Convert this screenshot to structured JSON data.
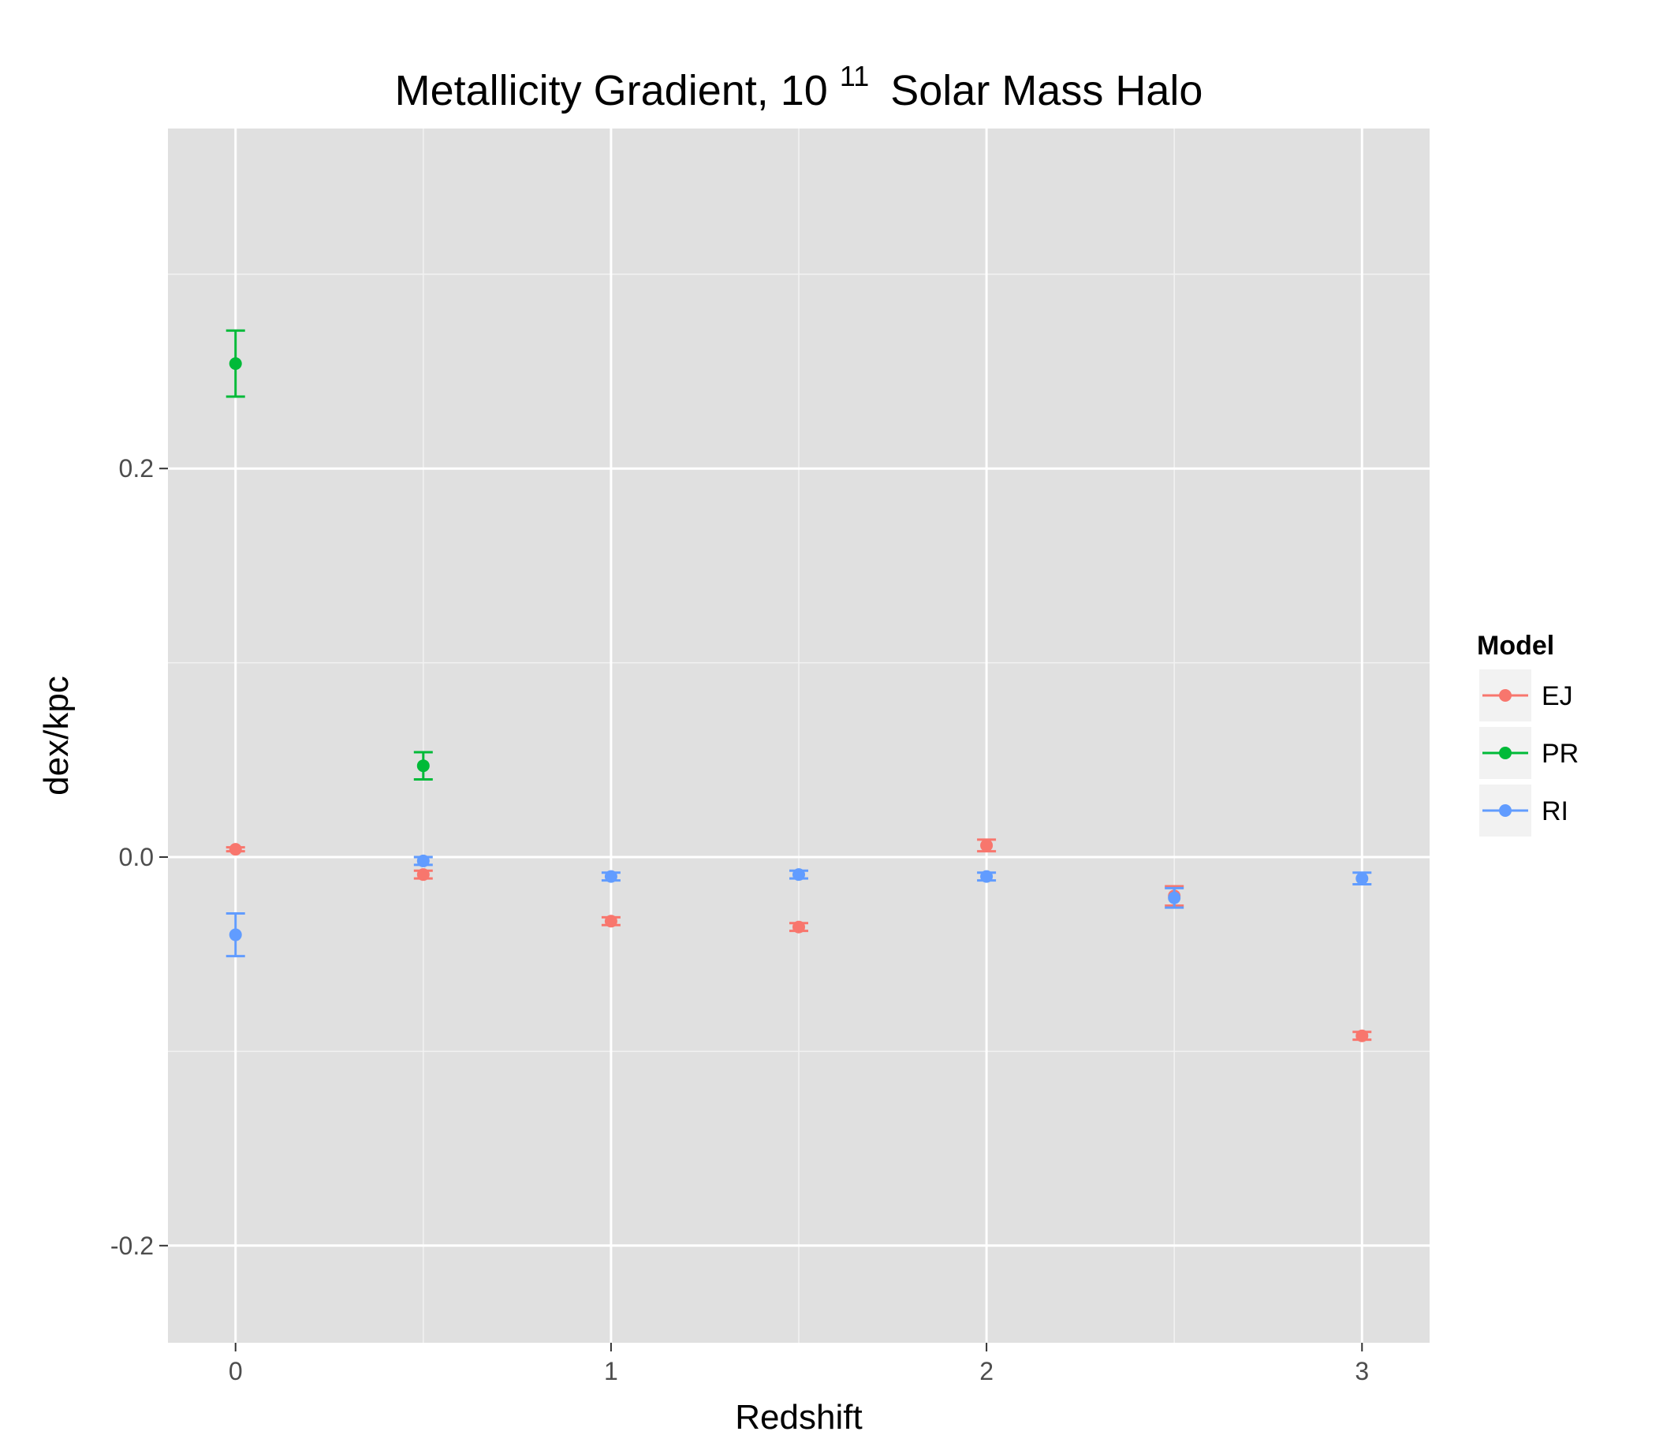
{
  "chart_data": {
    "type": "scatter",
    "title_main": "Metallicity Gradient, 10",
    "title_sup": "11",
    "title_tail": "Solar Mass Halo",
    "xlabel": "Redshift",
    "ylabel": "dex/kpc",
    "xlim": [
      -0.18,
      3.18
    ],
    "ylim": [
      -0.25,
      0.375
    ],
    "x_ticks": [
      0,
      1,
      2,
      3
    ],
    "x_tick_labels": [
      "0",
      "1",
      "2",
      "3"
    ],
    "x_minor": [
      0.5,
      1.5,
      2.5
    ],
    "y_ticks": [
      -0.2,
      0.0,
      0.2
    ],
    "y_tick_labels": [
      "-0.2",
      "0.0",
      "0.2"
    ],
    "y_minor": [
      -0.1,
      0.1,
      0.3
    ],
    "grid": true,
    "background": "#e0e0e0",
    "legend": {
      "title": "Model",
      "placement": "right"
    },
    "series": [
      {
        "name": "EJ",
        "color": "#f8766d",
        "points": [
          {
            "x": 0,
            "y": 0.004,
            "lo": 0.003,
            "hi": 0.005
          },
          {
            "x": 0.5,
            "y": -0.009,
            "lo": -0.011,
            "hi": -0.007
          },
          {
            "x": 1,
            "y": -0.033,
            "lo": -0.035,
            "hi": -0.031
          },
          {
            "x": 1.5,
            "y": -0.036,
            "lo": -0.038,
            "hi": -0.034
          },
          {
            "x": 2,
            "y": 0.006,
            "lo": 0.003,
            "hi": 0.009
          },
          {
            "x": 2.5,
            "y": -0.02,
            "lo": -0.025,
            "hi": -0.015
          },
          {
            "x": 3,
            "y": -0.092,
            "lo": -0.094,
            "hi": -0.09
          }
        ]
      },
      {
        "name": "PR",
        "color": "#00ba38",
        "points": [
          {
            "x": 0,
            "y": 0.254,
            "lo": 0.237,
            "hi": 0.271
          },
          {
            "x": 0.5,
            "y": 0.047,
            "lo": 0.04,
            "hi": 0.054
          }
        ]
      },
      {
        "name": "RI",
        "color": "#619cff",
        "points": [
          {
            "x": 0,
            "y": -0.04,
            "lo": -0.051,
            "hi": -0.029
          },
          {
            "x": 0.5,
            "y": -0.002,
            "lo": -0.004,
            "hi": 0.0
          },
          {
            "x": 1,
            "y": -0.01,
            "lo": -0.012,
            "hi": -0.008
          },
          {
            "x": 1.5,
            "y": -0.009,
            "lo": -0.011,
            "hi": -0.007
          },
          {
            "x": 2,
            "y": -0.01,
            "lo": -0.012,
            "hi": -0.008
          },
          {
            "x": 2.5,
            "y": -0.021,
            "lo": -0.026,
            "hi": -0.016
          },
          {
            "x": 3,
            "y": -0.011,
            "lo": -0.014,
            "hi": -0.008
          }
        ]
      }
    ]
  }
}
